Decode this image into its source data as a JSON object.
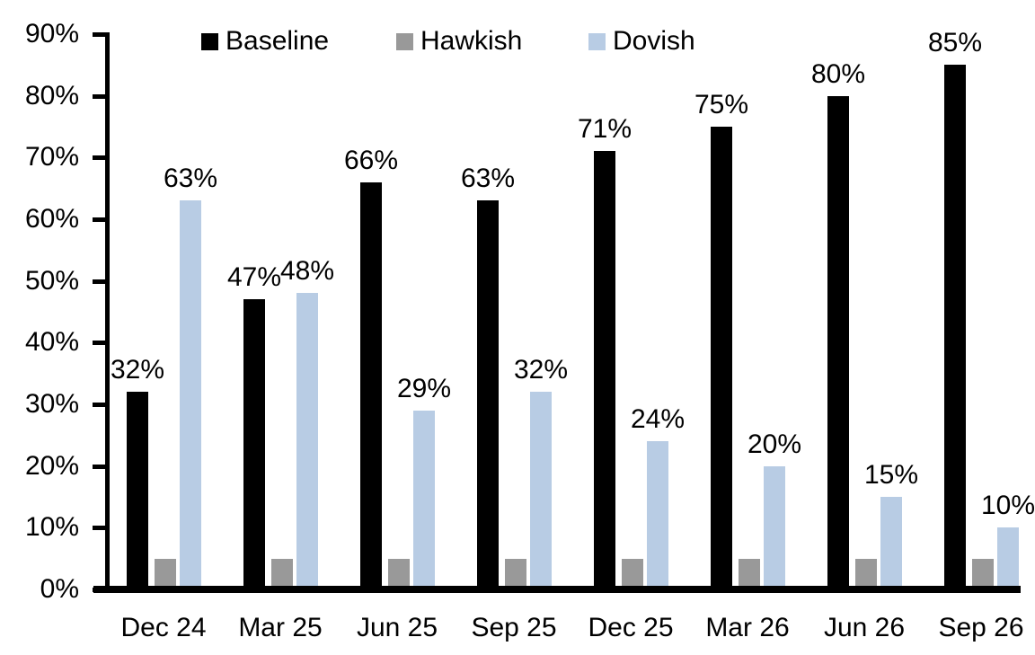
{
  "chart_data": {
    "type": "bar",
    "title": "",
    "categories": [
      "Dec 24",
      "Mar 25",
      "Jun 25",
      "Sep 25",
      "Dec 25",
      "Mar 26",
      "Jun 26",
      "Sep 26"
    ],
    "series": [
      {
        "name": "Baseline",
        "color": "#000000",
        "values": [
          32,
          47,
          66,
          63,
          71,
          75,
          80,
          85
        ],
        "data_labels": [
          "32%",
          "47%",
          "66%",
          "63%",
          "71%",
          "75%",
          "80%",
          "85%"
        ]
      },
      {
        "name": "Hawkish",
        "color": "#999999",
        "values": [
          5,
          5,
          5,
          5,
          5,
          5,
          5,
          5
        ],
        "data_labels": []
      },
      {
        "name": "Dovish",
        "color": "#B8CCE4",
        "values": [
          63,
          48,
          29,
          32,
          24,
          20,
          15,
          10
        ],
        "data_labels": [
          "63%",
          "48%",
          "29%",
          "32%",
          "24%",
          "20%",
          "15%",
          "10%"
        ]
      }
    ],
    "y_axis": {
      "min": 0,
      "max": 90,
      "step": 10,
      "tick_labels": [
        "0%",
        "10%",
        "20%",
        "30%",
        "40%",
        "50%",
        "60%",
        "70%",
        "80%",
        "90%"
      ],
      "format": "percent",
      "grid": false
    },
    "legend": {
      "position": "top",
      "entries": [
        "Baseline",
        "Hawkish",
        "Dovish"
      ]
    },
    "colors": {
      "background": "#ffffff",
      "axis": "#000000",
      "text": "#000000"
    }
  }
}
